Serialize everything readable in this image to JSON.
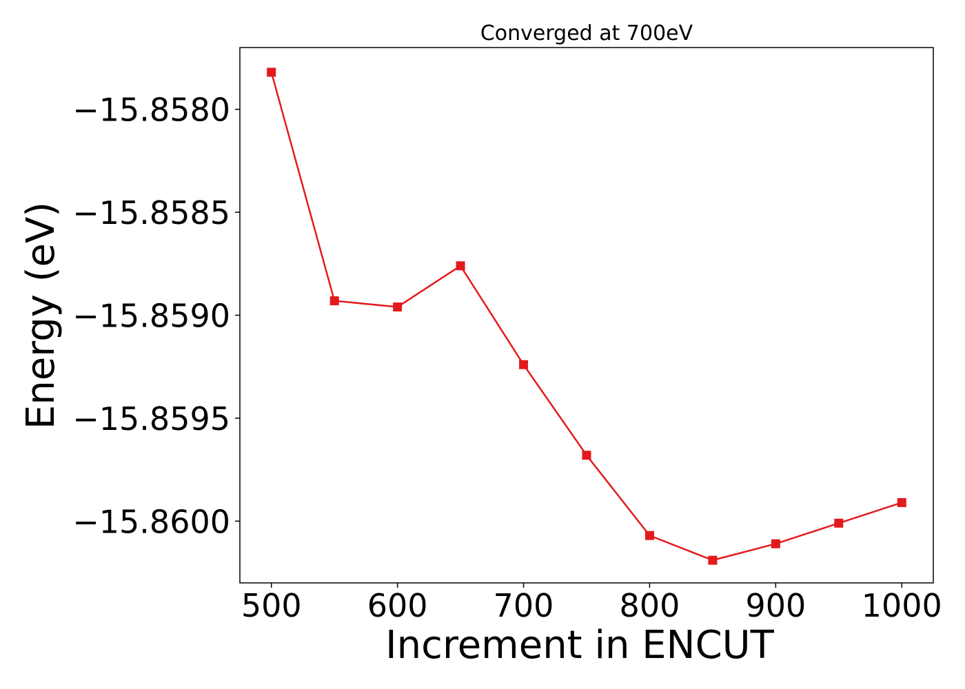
{
  "chart_data": {
    "type": "line",
    "title": "Converged at 700eV",
    "xlabel": "Increment in ENCUT",
    "ylabel": "Energy (eV)",
    "x": [
      500,
      550,
      600,
      650,
      700,
      750,
      800,
      850,
      900,
      950,
      1000
    ],
    "series": [
      {
        "values": [
          -15.85782,
          -15.85893,
          -15.85896,
          -15.85876,
          -15.85924,
          -15.85968,
          -15.86007,
          -15.86019,
          -15.86011,
          -15.86001,
          -15.85991
        ]
      }
    ],
    "xticks": [
      500,
      600,
      700,
      800,
      900,
      1000
    ],
    "xtick_labels": [
      "500",
      "600",
      "700",
      "800",
      "900",
      "1000"
    ],
    "yticks": [
      -15.858,
      -15.8585,
      -15.859,
      -15.8595,
      -15.86
    ],
    "ytick_labels": [
      "−15.8580",
      "−15.8585",
      "−15.8590",
      "−15.8595",
      "−15.8600"
    ],
    "xlim": [
      475,
      1025
    ],
    "ylim": [
      -15.8603,
      -15.8577
    ],
    "grid": false,
    "legend": "none",
    "line_color": "#e31a1c",
    "marker": "square"
  }
}
